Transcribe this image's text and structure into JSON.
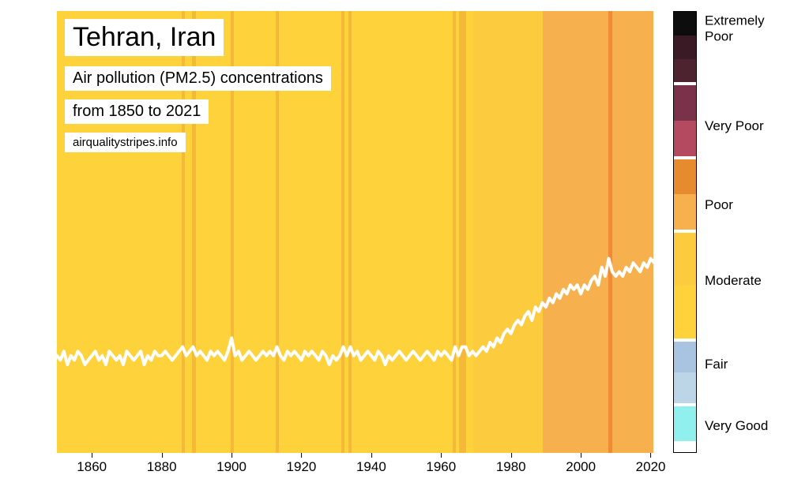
{
  "chart": {
    "title": "Tehran, Iran",
    "subtitle": "Air pollution (PM2.5) concentrations",
    "range": "from 1850 to 2021",
    "credit": "airqualitystripes.info",
    "x_start": 1850,
    "x_end": 2021,
    "x_ticks": [
      1860,
      1880,
      1900,
      1920,
      1940,
      1960,
      1980,
      2000,
      2020
    ],
    "y_min": 0,
    "y_max": 100,
    "background_color": "#ffffff",
    "stripe_colors": [
      "#fdd23b",
      "#fdd23b",
      "#fdd23b",
      "#fdd23b",
      "#fdd23b",
      "#fdd23b",
      "#fdd23b",
      "#fdd23b",
      "#fdd23b",
      "#fdd23b",
      "#fdd23b",
      "#fdd23b",
      "#fdd23b",
      "#fdd23b",
      "#fdd23b",
      "#fdd23b",
      "#fdd23b",
      "#fdd23b",
      "#fdd23b",
      "#fdd23b",
      "#fdd23b",
      "#fdd23b",
      "#fdd23b",
      "#fdd23b",
      "#fdd23b",
      "#fdd23b",
      "#fdd23b",
      "#fdd23b",
      "#fdd23b",
      "#fdd23b",
      "#fdd23b",
      "#fdd23b",
      "#fdd23b",
      "#fdd23b",
      "#fdd23b",
      "#fdd23b",
      "#f5b93a",
      "#fdd23b",
      "#fdd23b",
      "#f5b93a",
      "#fdd23b",
      "#fdd23b",
      "#fdd23b",
      "#fdd23b",
      "#fdd23b",
      "#fdd23b",
      "#fdd23b",
      "#fdd23b",
      "#fdd23b",
      "#fdd23b",
      "#f5b93a",
      "#fdd23b",
      "#fdd23b",
      "#fdd23b",
      "#fdd23b",
      "#fdd23b",
      "#fdd23b",
      "#fdd23b",
      "#fdd23b",
      "#fdd23b",
      "#fdd23b",
      "#fdd23b",
      "#fdd23b",
      "#f5b93a",
      "#fdd23b",
      "#fdd23b",
      "#fdd23b",
      "#fdd23b",
      "#fdd23b",
      "#fdd23b",
      "#fdd23b",
      "#fdd23b",
      "#fdd23b",
      "#fdd23b",
      "#fdd23b",
      "#fdd23b",
      "#fdd23b",
      "#fdd23b",
      "#fdd23b",
      "#fdd23b",
      "#fdd23b",
      "#fdd23b",
      "#f5b93a",
      "#fdd23b",
      "#f5b93a",
      "#fdd23b",
      "#fdd23b",
      "#fdd23b",
      "#fdd23b",
      "#fdd23b",
      "#fdd23b",
      "#fdd23b",
      "#fdd23b",
      "#fdd23b",
      "#fdd23b",
      "#fdd23b",
      "#fdd23b",
      "#fdd23b",
      "#fdd23b",
      "#fdd23b",
      "#fdd23b",
      "#fdd23b",
      "#fdd23b",
      "#fdd23b",
      "#fdd23b",
      "#fdd23b",
      "#fdd23b",
      "#fdd23b",
      "#fdd23b",
      "#fdd23b",
      "#fdd23b",
      "#fdd23b",
      "#fdd23b",
      "#fdd23b",
      "#f5b93a",
      "#fdd23b",
      "#f5b93a",
      "#f5b93a",
      "#fdd23b",
      "#fdd23b",
      "#fccb3e",
      "#fccb3e",
      "#fccb3e",
      "#fccb3e",
      "#fccb3e",
      "#fccb3e",
      "#fccb3e",
      "#fccb3e",
      "#fccb3e",
      "#fccb3e",
      "#fccb3e",
      "#fccb3e",
      "#fccb3e",
      "#fccb3e",
      "#fccb3e",
      "#fccb3e",
      "#fccb3e",
      "#fccb3e",
      "#fccb3e",
      "#fccb3e",
      "#f7b04e",
      "#f7b04e",
      "#f7b04e",
      "#f7b04e",
      "#f7b04e",
      "#f7b04e",
      "#f7b04e",
      "#f7b04e",
      "#f7b04e",
      "#f7b04e",
      "#f7b04e",
      "#f7b04e",
      "#f7b04e",
      "#f7b04e",
      "#f7b04e",
      "#f7b04e",
      "#f7b04e",
      "#f7b04e",
      "#f7b04e",
      "#ee8b34",
      "#f7b04e",
      "#f7b04e",
      "#f7b04e",
      "#f7b04e",
      "#f7b04e",
      "#f7b04e",
      "#f7b04e",
      "#f7b04e",
      "#f7b04e",
      "#f7b04e",
      "#f7b04e",
      "#f7b04e"
    ],
    "line_color": "#ffffff",
    "line_width": 4,
    "line_values": [
      22,
      21,
      23,
      20,
      22,
      21,
      23,
      22,
      20,
      21,
      22,
      23,
      21,
      22,
      20,
      23,
      22,
      21,
      22,
      20,
      23,
      22,
      21,
      22,
      23,
      20,
      22,
      21,
      23,
      22,
      22,
      23,
      22,
      21,
      22,
      23,
      24,
      22,
      23,
      24,
      22,
      23,
      22,
      21,
      23,
      22,
      23,
      22,
      21,
      23,
      26,
      22,
      23,
      21,
      22,
      23,
      22,
      21,
      22,
      23,
      22,
      23,
      22,
      24,
      22,
      21,
      23,
      22,
      23,
      22,
      21,
      23,
      22,
      23,
      22,
      21,
      23,
      22,
      20,
      22,
      21,
      22,
      24,
      22,
      24,
      22,
      23,
      21,
      22,
      23,
      22,
      21,
      23,
      22,
      20,
      22,
      21,
      22,
      23,
      22,
      21,
      22,
      23,
      22,
      21,
      22,
      23,
      22,
      21,
      23,
      22,
      23,
      22,
      21,
      24,
      22,
      24,
      24,
      22,
      23,
      22,
      23,
      24,
      23,
      25,
      24,
      26,
      25,
      27,
      28,
      27,
      29,
      30,
      29,
      31,
      32,
      30,
      33,
      32,
      34,
      33,
      35,
      34,
      36,
      35,
      37,
      36,
      38,
      37,
      38,
      36,
      38,
      37,
      39,
      40,
      38,
      42,
      40,
      44,
      41,
      40,
      41,
      40,
      42,
      41,
      43,
      42,
      41,
      43,
      42,
      44,
      43
    ]
  },
  "legend": {
    "segments": [
      {
        "label": "Extremely Poor",
        "colors": [
          "#0d0d0d",
          "#3a1a24",
          "#4d2330"
        ],
        "height_pct": 16.0
      },
      {
        "label": "Very Poor",
        "colors": [
          "#79324a",
          "#b34a5f"
        ],
        "height_pct": 16.0
      },
      {
        "label": "Poor",
        "colors": [
          "#e78b2f",
          "#f7b04e"
        ],
        "height_pct": 16.0
      },
      {
        "label": "Moderate",
        "colors": [
          "#fccb3e",
          "#fdd23b"
        ],
        "height_pct": 24.0
      },
      {
        "label": "Fair",
        "colors": [
          "#a9c4e0",
          "#bcd6e8"
        ],
        "height_pct": 14.0
      },
      {
        "label": "Very Good",
        "colors": [
          "#8ff0ee"
        ],
        "height_pct": 8.0
      }
    ],
    "divider_color": "#ffffff",
    "label_fontsize": 17,
    "label_positions_pct": [
      4,
      26,
      44,
      61,
      80,
      94
    ]
  }
}
